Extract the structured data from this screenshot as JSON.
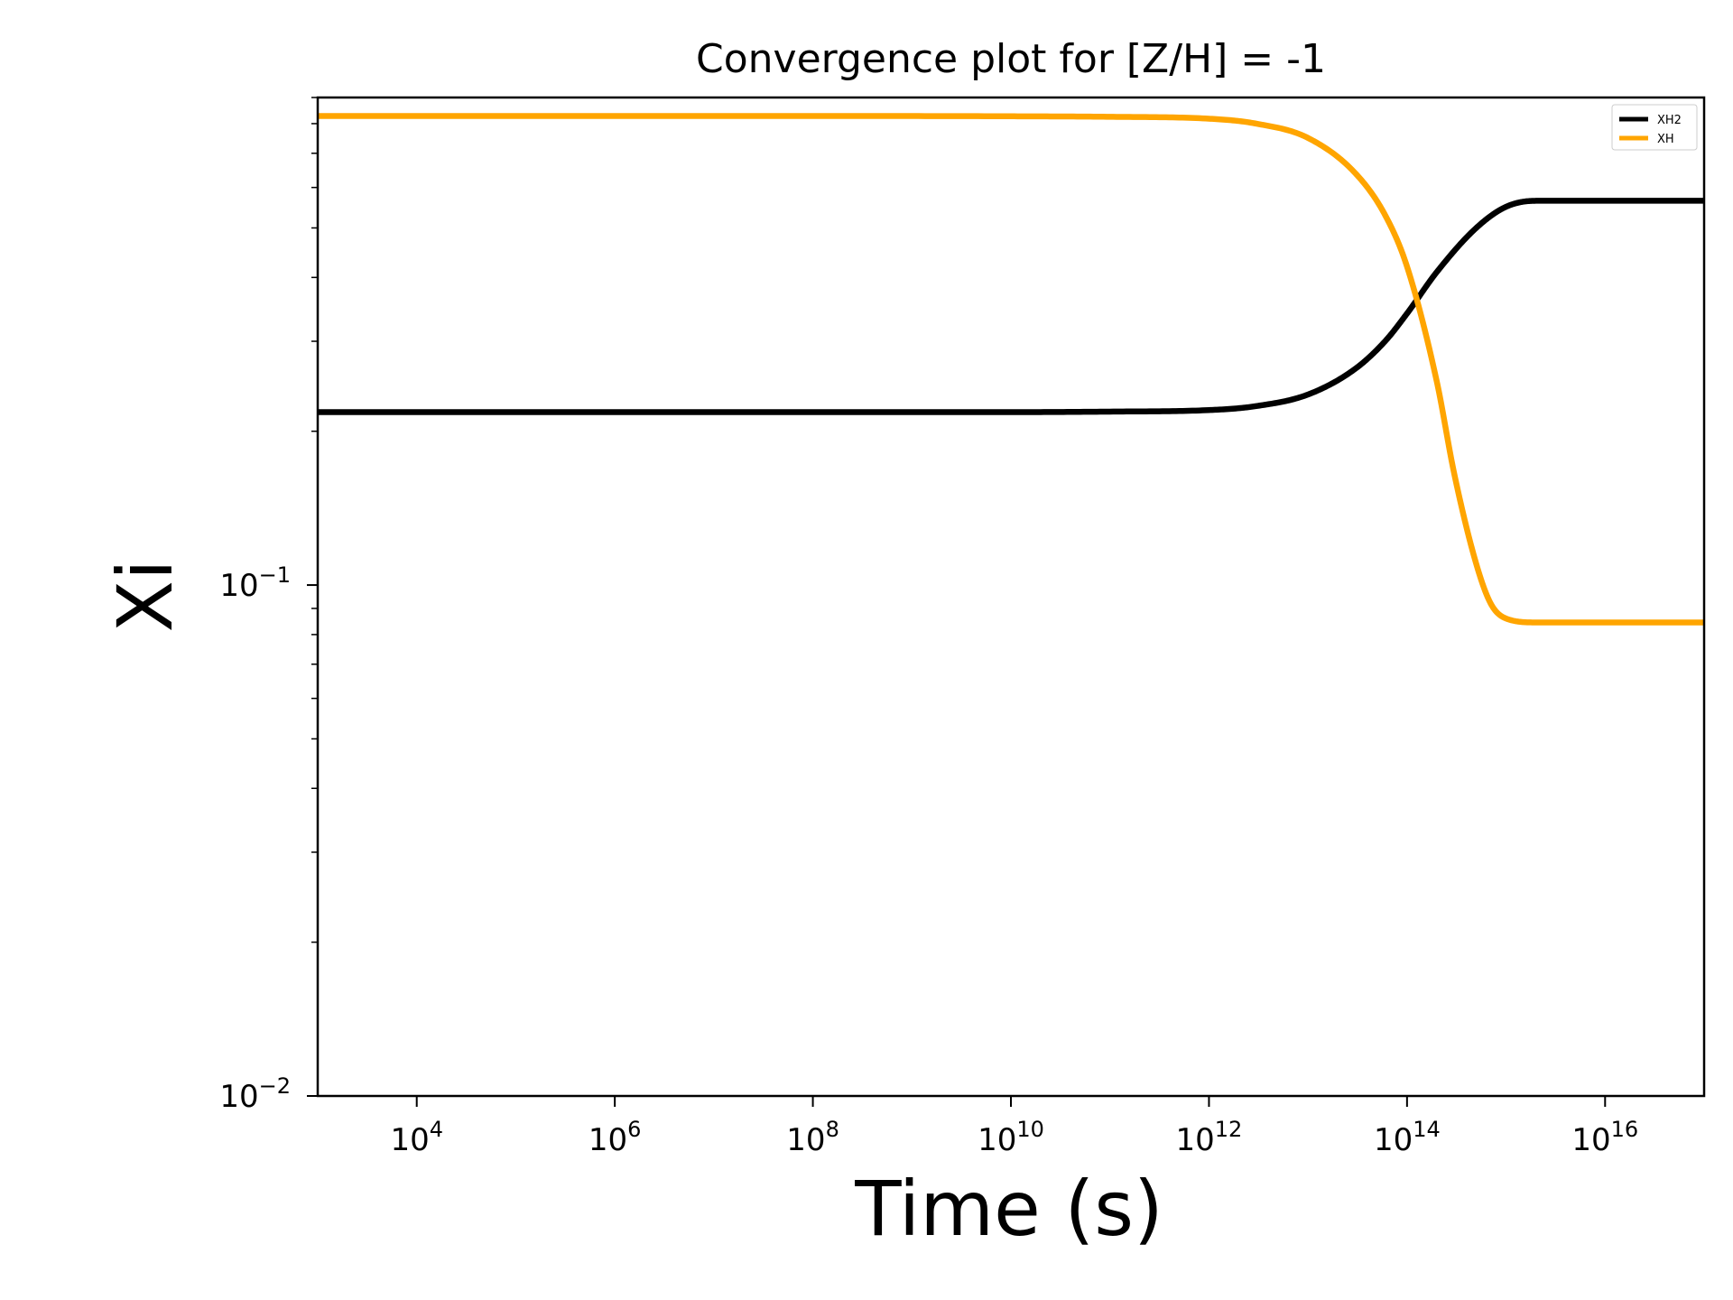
{
  "chart_data": {
    "type": "line",
    "title": "Convergence plot for [Z/H] = -1",
    "xlabel": "Time (s)",
    "ylabel": "Xi",
    "x_scale": "log",
    "y_scale": "log",
    "xlim": [
      1000,
      1e+17
    ],
    "ylim": [
      0.01,
      0.9
    ],
    "x_ticks": [
      {
        "value": 10000.0,
        "base": "10",
        "exp": "4"
      },
      {
        "value": 1000000.0,
        "base": "10",
        "exp": "6"
      },
      {
        "value": 100000000.0,
        "base": "10",
        "exp": "8"
      },
      {
        "value": 10000000000.0,
        "base": "10",
        "exp": "10"
      },
      {
        "value": 1000000000000.0,
        "base": "10",
        "exp": "12"
      },
      {
        "value": 100000000000000.0,
        "base": "10",
        "exp": "14"
      },
      {
        "value": 1e+16,
        "base": "10",
        "exp": "16"
      }
    ],
    "y_ticks": [
      {
        "value": 0.01,
        "base": "10",
        "exp": "−2"
      },
      {
        "value": 0.1,
        "base": "10",
        "exp": "−1"
      }
    ],
    "grid": false,
    "legend_position": "top-right",
    "series": [
      {
        "name": "XH2",
        "color": "#000000",
        "x": [
          1000,
          10000.0,
          1000000.0,
          100000000.0,
          10000000000.0,
          100000000000.0,
          1000000000000.0,
          3000000000000.0,
          10000000000000.0,
          30000000000000.0,
          60000000000000.0,
          100000000000000.0,
          200000000000000.0,
          500000000000000.0,
          1000000000000000.0,
          2000000000000000.0,
          1e+16,
          1e+17
        ],
        "y": [
          0.218,
          0.218,
          0.218,
          0.218,
          0.218,
          0.2185,
          0.22,
          0.224,
          0.236,
          0.265,
          0.3,
          0.34,
          0.41,
          0.5,
          0.55,
          0.565,
          0.565,
          0.565
        ]
      },
      {
        "name": "XH",
        "color": "#FFA500",
        "x": [
          1000,
          10000.0,
          1000000.0,
          100000000.0,
          10000000000.0,
          100000000000.0,
          1000000000000.0,
          3000000000000.0,
          10000000000000.0,
          30000000000000.0,
          60000000000000.0,
          100000000000000.0,
          200000000000000.0,
          300000000000000.0,
          500000000000000.0,
          700000000000000.0,
          1000000000000000.0,
          2000000000000000.0,
          1e+16,
          1e+17
        ],
        "y": [
          0.828,
          0.828,
          0.828,
          0.828,
          0.827,
          0.825,
          0.818,
          0.8,
          0.75,
          0.64,
          0.53,
          0.42,
          0.25,
          0.165,
          0.11,
          0.092,
          0.086,
          0.0845,
          0.0845,
          0.0845
        ]
      }
    ]
  }
}
